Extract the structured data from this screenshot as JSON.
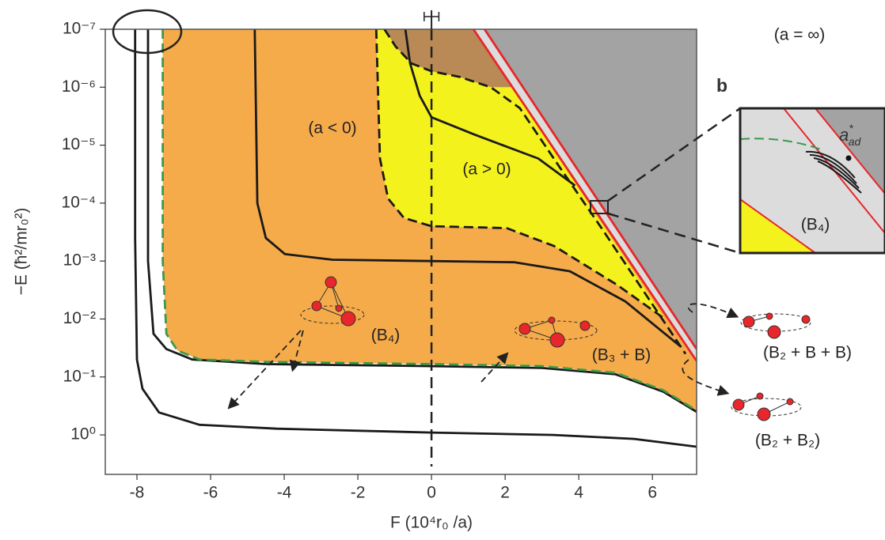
{
  "chart_data": {
    "type": "regions",
    "x_label": "F (10⁴r₀ /a)",
    "y_label": "−E (ħ²/mr₀²)",
    "xlim": [
      -8.86,
      7.2
    ],
    "xticks": [
      -8,
      -6,
      -4,
      -2,
      0,
      2,
      4,
      6
    ],
    "ylim": [
      1e-07,
      4.8
    ],
    "log_y": true,
    "y_inverted": true,
    "yticks": [
      {
        "value": 1e-07,
        "label": "10⁻⁷"
      },
      {
        "value": 1e-06,
        "label": "10⁻⁶"
      },
      {
        "value": 1e-05,
        "label": "10⁻⁵"
      },
      {
        "value": 0.0001,
        "label": "10⁻⁴"
      },
      {
        "value": 0.001,
        "label": "10⁻³"
      },
      {
        "value": 0.01,
        "label": "10⁻²"
      },
      {
        "value": 0.1,
        "label": "10⁻¹"
      },
      {
        "value": 1,
        "label": "10⁰"
      }
    ],
    "reference_line": {
      "x": 0,
      "err": 0.2
    },
    "regions": [
      {
        "color": "#f6ab4a",
        "x": [
          -7.3,
          -7.3,
          -7.2,
          -6.9,
          -6.3,
          -4.5,
          0,
          3,
          5,
          6.3,
          7.2,
          7.2,
          1.14
        ],
        "y": [
          1e-07,
          0.001,
          0.018,
          0.035,
          0.05,
          0.055,
          0.06,
          0.065,
          0.085,
          0.17,
          0.38,
          0.053,
          1e-07
        ]
      },
      {
        "color": "#f4f21c",
        "x": [
          -1.5,
          -1.4,
          -1.18,
          -0.75,
          0,
          2.04,
          3.33,
          5.05,
          6.34,
          1.14
        ],
        "y": [
          1e-07,
          1.7e-05,
          8.3e-05,
          0.00018,
          0.00025,
          0.00027,
          0.00055,
          0.0026,
          0.01,
          1e-07
        ]
      },
      {
        "color": "#b98a55",
        "x": [
          -1.28,
          -0.97,
          -0.54,
          0,
          0.75,
          1.61,
          2.2,
          1.14
        ],
        "y": [
          1e-07,
          2e-07,
          3.9e-07,
          5.3e-07,
          6.6e-07,
          1e-06,
          1e-06,
          1e-07
        ]
      },
      {
        "color": "#dcdcdc",
        "x": [
          1.14,
          1.44,
          7.2,
          7.2
        ],
        "y": [
          1e-07,
          1e-07,
          0.033,
          0.053
        ]
      },
      {
        "color": "#a3a3a3",
        "x": [
          1.44,
          7.2,
          7.2
        ],
        "y": [
          1e-07,
          1e-07,
          0.033
        ]
      }
    ],
    "curves": [
      {
        "style": "solid",
        "color": "#1a1a1a",
        "x": [
          -8.05,
          -8.05,
          -8.0,
          -7.85,
          -7.4,
          -6.3,
          -4.2,
          0,
          3.3,
          5.5,
          7.2
        ],
        "y": [
          1e-07,
          0.0004,
          0.05,
          0.16,
          0.41,
          0.67,
          0.78,
          0.91,
          1,
          1.17,
          1.6
        ]
      },
      {
        "style": "solid",
        "color": "#1a1a1a",
        "x": [
          -7.7,
          -7.7,
          -7.55,
          -7.2,
          -6.5,
          -4.5,
          0,
          3,
          5,
          6.3,
          7.2
        ],
        "y": [
          1e-07,
          0.001,
          0.018,
          0.033,
          0.05,
          0.06,
          0.065,
          0.07,
          0.09,
          0.18,
          0.4
        ]
      },
      {
        "style": "dashed",
        "color": "#3a9a4a",
        "x": [
          -7.3,
          -7.3,
          -7.2,
          -6.9,
          -6.3,
          -4.5,
          0,
          3,
          5,
          6.3,
          7.2
        ],
        "y": [
          1e-07,
          0.001,
          0.018,
          0.035,
          0.05,
          0.055,
          0.06,
          0.065,
          0.085,
          0.17,
          0.38
        ]
      },
      {
        "style": "dashed",
        "color": "#1a1a1a",
        "x": [
          -1.5,
          -1.4,
          -1.18,
          -0.75,
          0,
          2.04,
          3.33,
          5.05,
          6.34
        ],
        "y": [
          1e-07,
          1.7e-05,
          8.3e-05,
          0.00018,
          0.00025,
          0.00027,
          0.00055,
          0.0026,
          0.01
        ]
      },
      {
        "style": "dashed",
        "color": "#1a1a1a",
        "x": [
          -1.28,
          -0.97,
          -0.54,
          0,
          0.75,
          1.61,
          2.4,
          3.5,
          4.6,
          5.8,
          6.9
        ],
        "y": [
          1e-07,
          2e-07,
          3.9e-07,
          5.3e-07,
          6.6e-07,
          1e-06,
          2.3e-06,
          2.5e-05,
          0.00026,
          0.0036,
          0.04
        ]
      },
      {
        "style": "solid",
        "color": "#1a1a1a",
        "x": [
          -4.8,
          -4.73,
          -4.5,
          -3.98,
          -2.69,
          0,
          2.26,
          3.76,
          5.27,
          6.77
        ],
        "y": [
          1e-07,
          0.0001,
          0.0004,
          0.00076,
          0.00095,
          0.001,
          0.00105,
          0.0015,
          0.005,
          0.03
        ]
      },
      {
        "style": "solid",
        "color": "#1a1a1a",
        "x": [
          -0.71,
          -0.58,
          -0.32,
          0,
          1.18,
          2.9,
          3.9
        ],
        "y": [
          1e-07,
          3.9e-07,
          1.4e-06,
          3.3e-06,
          6.6e-06,
          1.7e-05,
          5e-05
        ]
      },
      {
        "style": "solid",
        "color": "#e8262b",
        "x": [
          1.14,
          7.2
        ],
        "y": [
          1e-07,
          0.053
        ]
      },
      {
        "style": "solid",
        "color": "#e8262b",
        "x": [
          1.44,
          7.2
        ],
        "y": [
          1e-07,
          0.033
        ]
      }
    ],
    "annotations": {
      "a_inf": "(a = ∞)",
      "a_neg": "(a < 0)",
      "a_pos": "(a > 0)",
      "b4": "(B₄)",
      "b3b": "(B₃ + B)",
      "b2bb": "(B₂ + B + B)",
      "b2b2": "(B₂ + B₂)"
    },
    "inset": {
      "panel": "b",
      "label_base": "a",
      "label_sup": "*",
      "label_sub": "ad",
      "region": "(B₄)"
    }
  }
}
